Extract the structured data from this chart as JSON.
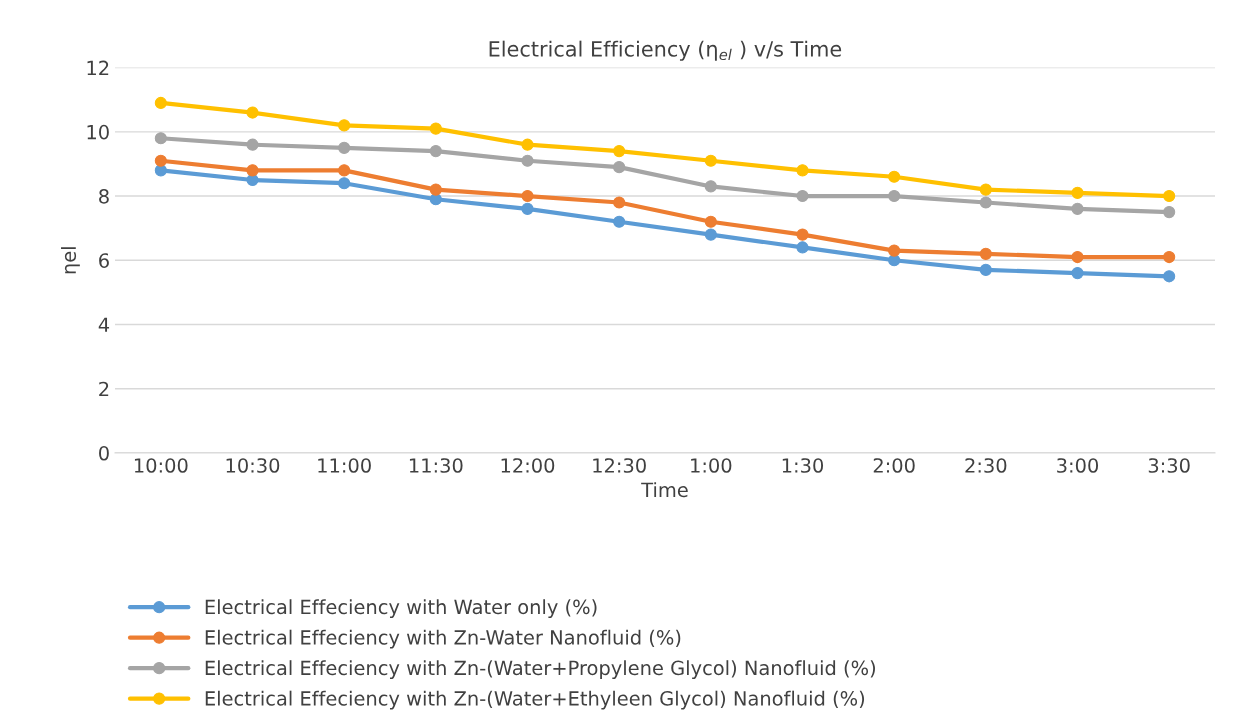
{
  "chart_data": {
    "type": "line",
    "title": "Electrical Efficiency (η$_{el}$ ) v/s Time",
    "xlabel": "Time",
    "ylabel": "ηel",
    "categories": [
      "10:00",
      "10:30",
      "11:00",
      "11:30",
      "12:00",
      "12:30",
      "1:00",
      "1:30",
      "2:00",
      "2:30",
      "3:00",
      "3:30"
    ],
    "series": [
      {
        "name": "Electrical Effeciency with Water only (%)",
        "color": "#5b9bd5",
        "values": [
          8.8,
          8.5,
          8.4,
          7.9,
          7.6,
          7.2,
          6.8,
          6.4,
          6.0,
          5.7,
          5.6,
          5.5
        ]
      },
      {
        "name": "Electrical Effeciency with Zn-Water Nanofluid (%)",
        "color": "#ed7d31",
        "values": [
          9.1,
          8.8,
          8.8,
          8.2,
          8.0,
          7.8,
          7.2,
          6.8,
          6.3,
          6.2,
          6.1,
          6.1
        ]
      },
      {
        "name": "Electrical Effeciency with Zn-(Water+Propylene Glycol) Nanofluid (%)",
        "color": "#a5a5a5",
        "values": [
          9.8,
          9.6,
          9.5,
          9.4,
          9.1,
          8.9,
          8.3,
          8.0,
          8.0,
          7.8,
          7.6,
          7.5
        ]
      },
      {
        "name": "Electrical Effeciency with Zn-(Water+Ethyleen Glycol) Nanofluid (%)",
        "color": "#ffc000",
        "values": [
          10.9,
          10.6,
          10.2,
          10.1,
          9.6,
          9.4,
          9.1,
          8.8,
          8.6,
          8.2,
          8.1,
          8.0
        ]
      }
    ],
    "ylim": [
      0,
      12
    ],
    "yticks": [
      0,
      2,
      4,
      6,
      8,
      10,
      12
    ],
    "grid": "y",
    "legend": "bottom",
    "marker": "circle",
    "line_style": "solid"
  }
}
